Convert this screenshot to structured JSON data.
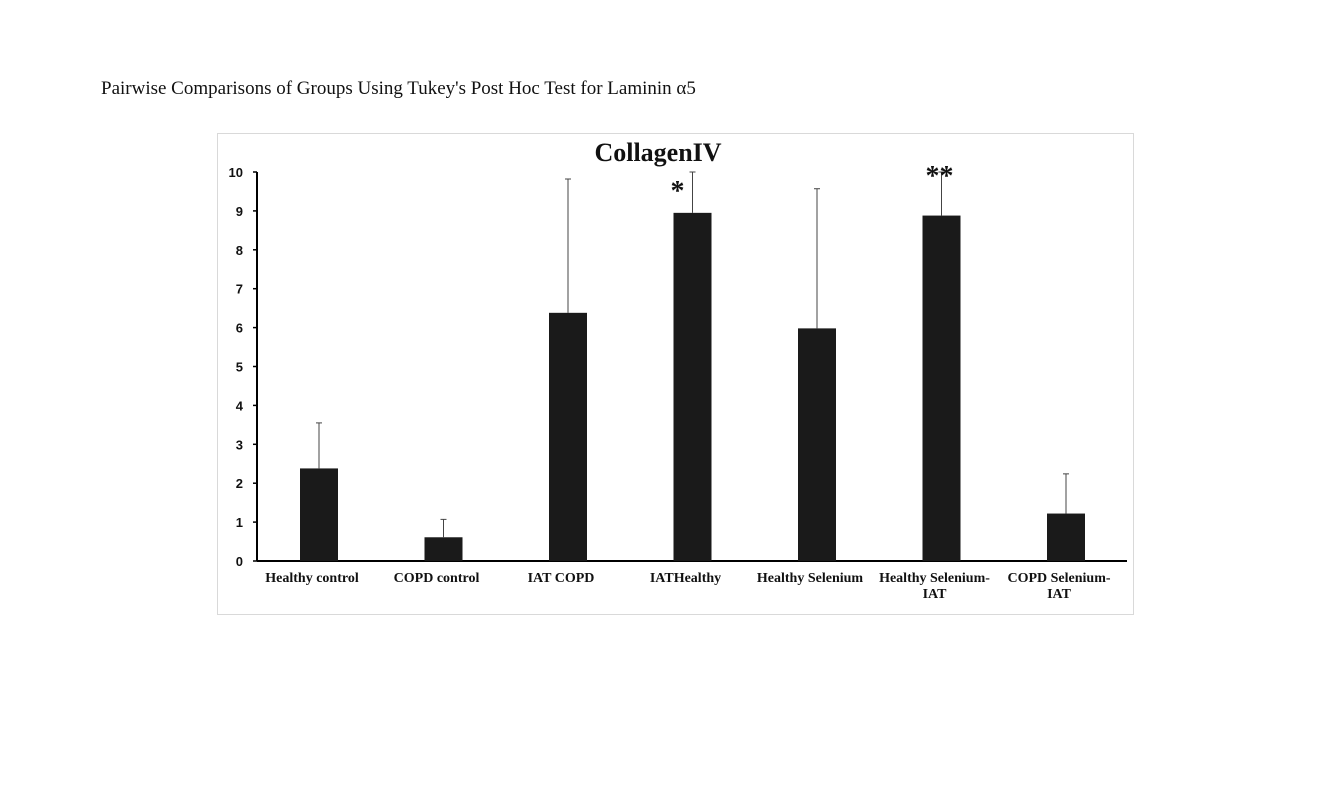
{
  "document": {
    "caption": "Pairwise Comparisons of Groups Using Tukey's Post Hoc Test for Laminin α5"
  },
  "colors": {
    "bar": "#1a1a1a",
    "axis": "#000000",
    "error_bar": "#444444",
    "frame_border": "#d9d9d9"
  },
  "chart_data": {
    "type": "bar",
    "title": "CollagenIV",
    "xlabel": "",
    "ylabel": "",
    "ylim": [
      0,
      10
    ],
    "yticks": [
      0,
      1,
      2,
      3,
      4,
      5,
      6,
      7,
      8,
      9,
      10
    ],
    "grid": false,
    "legend": "none",
    "categories": [
      [
        "Healthy control"
      ],
      [
        "COPD control"
      ],
      [
        "IAT  COPD"
      ],
      [
        "IATHealthy"
      ],
      [
        "Healthy Selenium"
      ],
      [
        "Healthy Selenium-",
        "IAT"
      ],
      [
        "COPD Selenium-",
        "IAT"
      ]
    ],
    "values": [
      2.38,
      0.61,
      6.38,
      8.95,
      5.98,
      8.88,
      1.22
    ],
    "error_upper": [
      3.55,
      1.07,
      9.82,
      10.0,
      9.57,
      10.0,
      2.24
    ],
    "significance": [
      "",
      "",
      "",
      "*",
      "",
      "**",
      ""
    ]
  }
}
